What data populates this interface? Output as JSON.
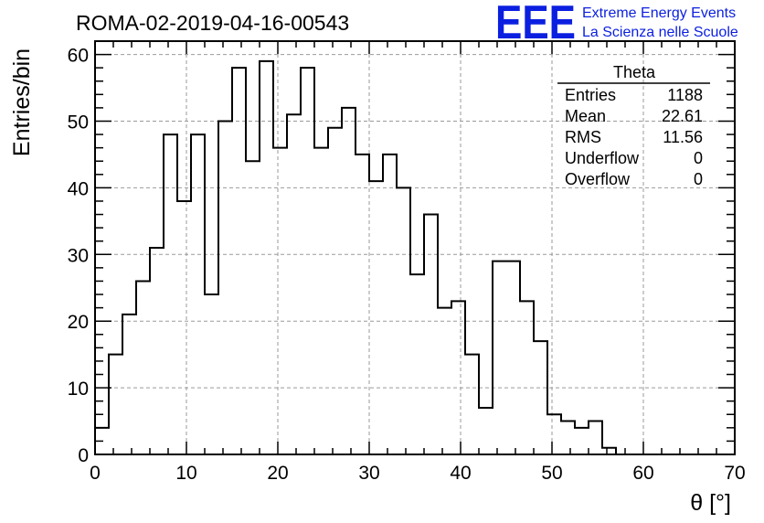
{
  "header": {
    "run_title": "ROMA-02-2019-04-16-00543",
    "logo": {
      "mark": "EEE",
      "line1": "Extreme Energy Events",
      "line2": "La Scienza nelle Scuole",
      "color": "#0b1fe0"
    }
  },
  "stats": {
    "title": "Theta",
    "rows": [
      {
        "label": "Entries",
        "value": "1188"
      },
      {
        "label": "Mean",
        "value": "22.61"
      },
      {
        "label": "RMS",
        "value": "11.56"
      },
      {
        "label": "Underflow",
        "value": "0"
      },
      {
        "label": "Overflow",
        "value": "0"
      }
    ]
  },
  "chart_data": {
    "type": "bar",
    "style": "step-histogram",
    "xlabel": "θ [°]",
    "ylabel": "Entries/bin",
    "xlim": [
      0,
      70
    ],
    "ylim": [
      0,
      62
    ],
    "grid": true,
    "x_ticks": [
      0,
      10,
      20,
      30,
      40,
      50,
      60,
      70
    ],
    "y_ticks": [
      0,
      10,
      20,
      30,
      40,
      50,
      60
    ],
    "bin_width": 1.5,
    "bin_edges_start": 0,
    "values": [
      4,
      15,
      21,
      26,
      31,
      48,
      38,
      48,
      24,
      50,
      58,
      44,
      59,
      46,
      51,
      58,
      46,
      49,
      52,
      45,
      41,
      45,
      40,
      27,
      36,
      22,
      23,
      15,
      7,
      29,
      29,
      23,
      17,
      6,
      5,
      4,
      5,
      1
    ],
    "line_color": "#000000"
  }
}
